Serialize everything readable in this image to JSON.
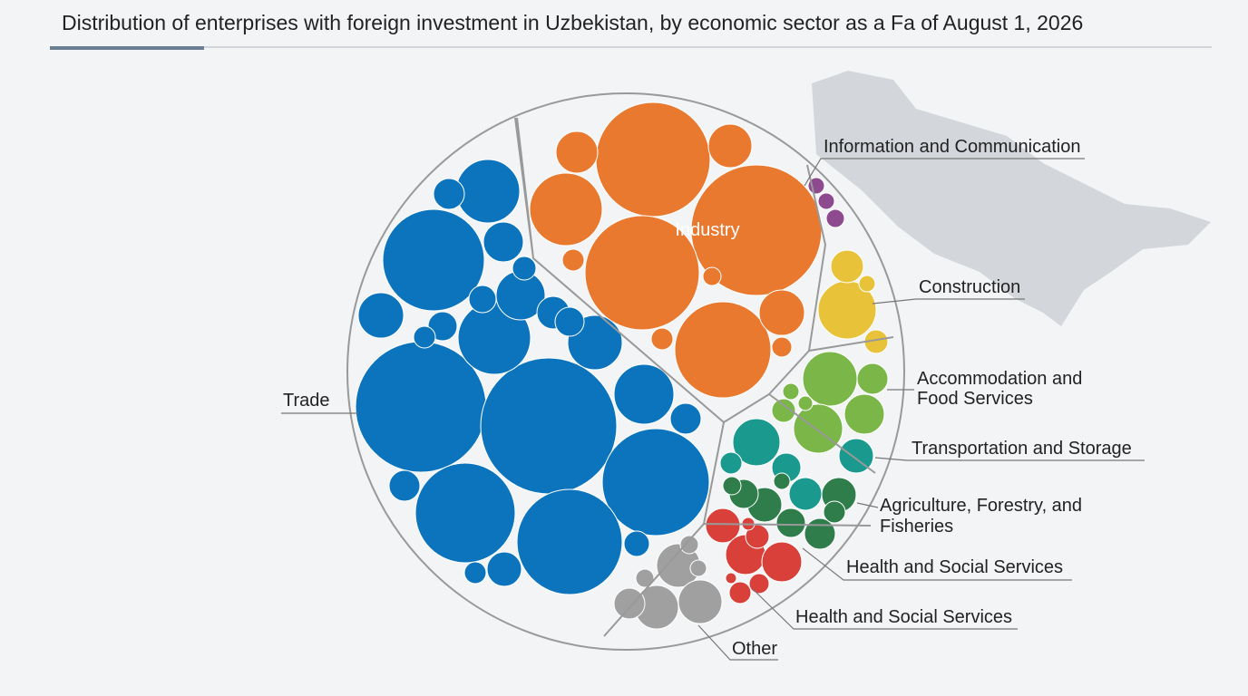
{
  "title": "Distribution of enterprises with foreign investment in Uzbekistan, by economic sector as a Fa of August 1, 2026",
  "center_label": "Industry",
  "sectors": [
    {
      "key": "trade",
      "lines": [
        "Trade"
      ],
      "color": "#0b74bd"
    },
    {
      "key": "industry",
      "color": "#e8792f"
    },
    {
      "key": "info",
      "lines": [
        "Information and Communication"
      ],
      "color": "#8e4a8f"
    },
    {
      "key": "construction",
      "lines": [
        "Construction"
      ],
      "color": "#e8c33a"
    },
    {
      "key": "accommodation",
      "lines": [
        "Accommodation and",
        "Food Services"
      ],
      "color": "#7ab648"
    },
    {
      "key": "transport",
      "lines": [
        "Transportation and Storage"
      ],
      "color": "#1a9a8e"
    },
    {
      "key": "agriculture",
      "lines": [
        "Agriculture, Forestry, and",
        "Fisheries"
      ],
      "color": "#2e7d4a"
    },
    {
      "key": "health",
      "lines": [
        "Health and Social Services"
      ],
      "color": "#d9403a"
    },
    {
      "key": "health2",
      "lines": [
        "Health and Social Services"
      ]
    },
    {
      "key": "other",
      "lines": [
        "Other"
      ],
      "color": "#a0a0a0"
    }
  ]
}
